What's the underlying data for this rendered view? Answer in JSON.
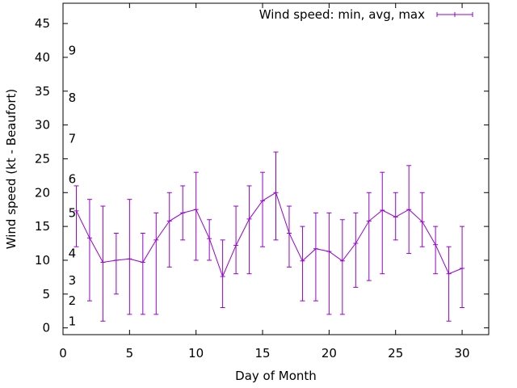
{
  "chart_data": {
    "type": "line",
    "xlabel": "Day of Month",
    "ylabel": "Wind speed (kt - Beaufort)",
    "xlim": [
      0,
      32
    ],
    "ylim": [
      -1,
      48
    ],
    "x_ticks": [
      0,
      5,
      10,
      15,
      20,
      25,
      30
    ],
    "y_ticks": [
      0,
      5,
      10,
      15,
      20,
      25,
      30,
      35,
      40,
      45
    ],
    "grid": false,
    "legend": "top-right",
    "series": [
      {
        "name": "Wind speed: min, avg, max",
        "color": "#9400d3",
        "x": [
          1,
          2,
          3,
          4,
          5,
          6,
          7,
          8,
          9,
          10,
          11,
          12,
          13,
          14,
          15,
          16,
          17,
          18,
          19,
          20,
          21,
          22,
          23,
          24,
          25,
          26,
          27,
          28,
          29,
          30
        ],
        "avg": [
          17.3,
          13.3,
          9.7,
          10.0,
          10.2,
          9.7,
          13.0,
          15.8,
          17.0,
          17.5,
          13.2,
          7.6,
          12.2,
          16.1,
          18.8,
          20.0,
          14.0,
          9.9,
          11.7,
          11.3,
          9.9,
          12.5,
          15.8,
          17.4,
          16.4,
          17.5,
          15.7,
          12.3,
          8.0,
          8.8
        ],
        "min": [
          12,
          4,
          1,
          5,
          2,
          2,
          2,
          9,
          13,
          10,
          10,
          3,
          8,
          8,
          12,
          13,
          9,
          4,
          4,
          2,
          2,
          6,
          7,
          8,
          13,
          11,
          12,
          8,
          1,
          3
        ],
        "max": [
          21,
          19,
          18,
          14,
          19,
          14,
          17,
          20,
          21,
          23,
          16,
          13,
          18,
          21,
          23,
          26,
          18,
          15,
          17,
          17,
          16,
          17,
          20,
          23,
          20,
          24,
          20,
          15,
          12,
          15
        ]
      }
    ],
    "annotations": [
      {
        "text": "1",
        "y": 1
      },
      {
        "text": "2",
        "y": 4
      },
      {
        "text": "3",
        "y": 7
      },
      {
        "text": "4",
        "y": 11
      },
      {
        "text": "5",
        "y": 17
      },
      {
        "text": "6",
        "y": 22
      },
      {
        "text": "7",
        "y": 28
      },
      {
        "text": "8",
        "y": 34
      },
      {
        "text": "9",
        "y": 41
      }
    ]
  }
}
